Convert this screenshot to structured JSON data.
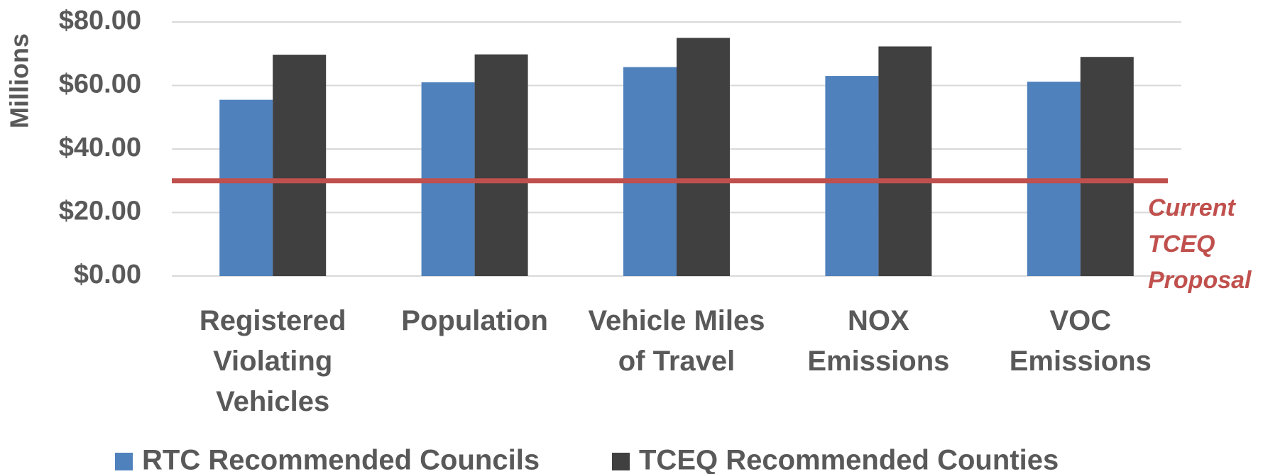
{
  "chart_data": {
    "type": "bar",
    "y_label": "Millions",
    "categories": [
      "Registered\nViolating\nVehicles",
      "Population",
      "Vehicle Miles\nof Travel",
      "NOX\nEmissions",
      "VOC\nEmissions"
    ],
    "series": [
      {
        "name": "RTC Recommended Councils",
        "color": "#4f81bd",
        "values": [
          55.5,
          61,
          65.8,
          63,
          61.2
        ]
      },
      {
        "name": "TCEQ Recommended Counties",
        "color": "#404040",
        "values": [
          69.7,
          69.8,
          75,
          72.3,
          69
        ]
      }
    ],
    "ylim": [
      0,
      80
    ],
    "yticks": [
      {
        "value": 0,
        "label": "$0.00"
      },
      {
        "value": 20,
        "label": "$20.00"
      },
      {
        "value": 40,
        "label": "$40.00"
      },
      {
        "value": 60,
        "label": "$60.00"
      },
      {
        "value": 80,
        "label": "$80.00"
      }
    ],
    "grid": true,
    "legend": "bottom",
    "reference_line": {
      "value": 30,
      "label": "Current\nTCEQ\nProposal",
      "color": "#c0504d"
    }
  }
}
